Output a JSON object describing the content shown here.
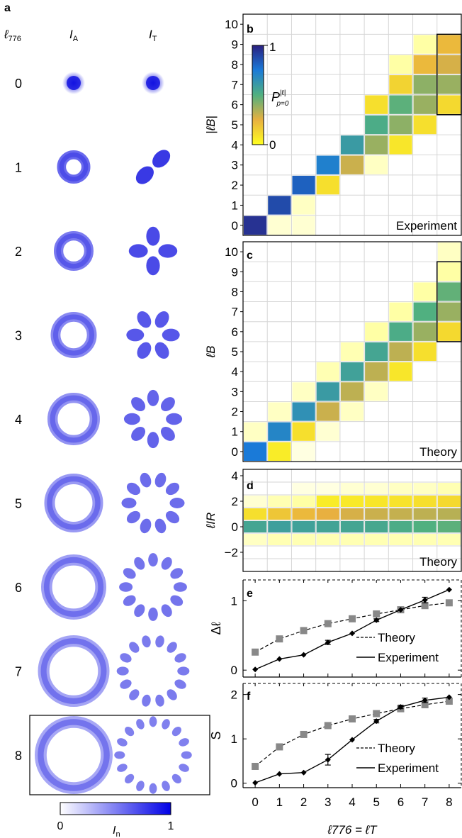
{
  "panel_letters": {
    "a": "a",
    "b": "b",
    "c": "c",
    "d": "d",
    "e": "e",
    "f": "f"
  },
  "panel_a": {
    "col_l776": "ℓ",
    "col_l776_sub": "776",
    "col_IA": "I",
    "col_IA_sub": "A",
    "col_IT": "I",
    "col_IT_sub": "T",
    "rows": [
      "0",
      "1",
      "2",
      "3",
      "4",
      "5",
      "6",
      "7",
      "8"
    ],
    "highlighted_row": "8",
    "colorbar": {
      "min_label": "0",
      "max_label": "1",
      "label": "I",
      "label_sub": "n",
      "colors": [
        "#ffffff",
        "#0000e6"
      ]
    }
  },
  "chart_data": [
    {
      "id": "b",
      "type": "heatmap",
      "ylabel": "|ℓB|",
      "corner_label": "Experiment",
      "x": [
        0,
        1,
        2,
        3,
        4,
        5,
        6,
        7,
        8
      ],
      "y_ticks": [
        "0",
        "1",
        "2",
        "3",
        "4",
        "5",
        "6",
        "7",
        "8",
        "9",
        "10"
      ],
      "ylim": [
        0,
        10
      ],
      "cells": [
        [
          0,
          0,
          0.95
        ],
        [
          1,
          0,
          0.02
        ],
        [
          2,
          0,
          0.02
        ],
        [
          1,
          1,
          0.88
        ],
        [
          2,
          1,
          0.03
        ],
        [
          2,
          2,
          0.82
        ],
        [
          3,
          2,
          0.1
        ],
        [
          3,
          3,
          0.72
        ],
        [
          4,
          3,
          0.3
        ],
        [
          5,
          3,
          0.03
        ],
        [
          4,
          4,
          0.6
        ],
        [
          5,
          4,
          0.38
        ],
        [
          6,
          4,
          0.08
        ],
        [
          5,
          5,
          0.52
        ],
        [
          6,
          5,
          0.4
        ],
        [
          7,
          5,
          0.1
        ],
        [
          5,
          6,
          0.1
        ],
        [
          6,
          6,
          0.48
        ],
        [
          7,
          6,
          0.38
        ],
        [
          8,
          6,
          0.12
        ],
        [
          6,
          7,
          0.14
        ],
        [
          7,
          7,
          0.4
        ],
        [
          8,
          7,
          0.38
        ],
        [
          6,
          8,
          0.05
        ],
        [
          7,
          8,
          0.22
        ],
        [
          8,
          8,
          0.28
        ],
        [
          7,
          9,
          0.05
        ],
        [
          8,
          9,
          0.22
        ]
      ],
      "highlight_box": {
        "x": 8,
        "y_from": 6,
        "y_to": 9
      },
      "colorbar": {
        "label": "P",
        "label_sup": "|ℓ|",
        "label_sub": "p=0",
        "min_label": "0",
        "max_label": "1"
      }
    },
    {
      "id": "c",
      "type": "heatmap",
      "ylabel": "ℓB",
      "corner_label": "Theory",
      "x": [
        0,
        1,
        2,
        3,
        4,
        5,
        6,
        7,
        8
      ],
      "y_ticks": [
        "0",
        "1",
        "2",
        "3",
        "4",
        "5",
        "6",
        "7",
        "8",
        "9",
        "10"
      ],
      "ylim": [
        0,
        10
      ],
      "cells": [
        [
          0,
          0,
          0.75
        ],
        [
          1,
          0,
          0.06
        ],
        [
          2,
          0,
          0.01
        ],
        [
          0,
          1,
          0.03
        ],
        [
          1,
          1,
          0.7
        ],
        [
          2,
          1,
          0.1
        ],
        [
          3,
          1,
          0.02
        ],
        [
          1,
          2,
          0.03
        ],
        [
          2,
          2,
          0.65
        ],
        [
          3,
          2,
          0.3
        ],
        [
          4,
          2,
          0.03
        ],
        [
          2,
          3,
          0.03
        ],
        [
          3,
          3,
          0.6
        ],
        [
          4,
          3,
          0.32
        ],
        [
          5,
          3,
          0.03
        ],
        [
          3,
          4,
          0.04
        ],
        [
          4,
          4,
          0.57
        ],
        [
          5,
          4,
          0.32
        ],
        [
          6,
          4,
          0.08
        ],
        [
          4,
          5,
          0.04
        ],
        [
          5,
          5,
          0.55
        ],
        [
          6,
          5,
          0.32
        ],
        [
          7,
          5,
          0.1
        ],
        [
          5,
          6,
          0.05
        ],
        [
          6,
          6,
          0.52
        ],
        [
          7,
          6,
          0.38
        ],
        [
          8,
          6,
          0.12
        ],
        [
          6,
          7,
          0.05
        ],
        [
          7,
          7,
          0.5
        ],
        [
          8,
          7,
          0.38
        ],
        [
          7,
          8,
          0.05
        ],
        [
          8,
          8,
          0.47
        ],
        [
          8,
          9,
          0.05
        ],
        [
          8,
          10,
          0.03
        ]
      ],
      "highlight_box": {
        "x": 8,
        "y_from": 6,
        "y_to": 9
      }
    },
    {
      "id": "d",
      "type": "heatmap",
      "ylabel": "ℓIR",
      "corner_label": "Theory",
      "x": [
        0,
        1,
        2,
        3,
        4,
        5,
        6,
        7,
        8
      ],
      "y_ticks": [
        "-2",
        "0",
        "2",
        "4"
      ],
      "ylim": [
        -3,
        4
      ],
      "cells": [
        [
          0,
          0,
          0.55
        ],
        [
          1,
          0,
          0.58
        ],
        [
          2,
          0,
          0.57
        ],
        [
          3,
          0,
          0.56
        ],
        [
          4,
          0,
          0.55
        ],
        [
          5,
          0,
          0.54
        ],
        [
          6,
          0,
          0.52
        ],
        [
          7,
          0,
          0.5
        ],
        [
          8,
          0,
          0.48
        ],
        [
          0,
          1,
          0.1
        ],
        [
          1,
          1,
          0.18
        ],
        [
          2,
          1,
          0.22
        ],
        [
          3,
          1,
          0.25
        ],
        [
          4,
          1,
          0.28
        ],
        [
          5,
          1,
          0.3
        ],
        [
          6,
          1,
          0.31
        ],
        [
          7,
          1,
          0.32
        ],
        [
          8,
          1,
          0.33
        ],
        [
          0,
          2,
          0.02
        ],
        [
          1,
          2,
          0.04
        ],
        [
          2,
          2,
          0.05
        ],
        [
          3,
          2,
          0.06
        ],
        [
          4,
          2,
          0.07
        ],
        [
          5,
          2,
          0.08
        ],
        [
          6,
          2,
          0.09
        ],
        [
          7,
          2,
          0.1
        ],
        [
          8,
          2,
          0.12
        ],
        [
          2,
          3,
          0.01
        ],
        [
          3,
          3,
          0.01
        ],
        [
          4,
          3,
          0.02
        ],
        [
          5,
          3,
          0.02
        ],
        [
          6,
          3,
          0.03
        ],
        [
          7,
          3,
          0.03
        ],
        [
          8,
          3,
          0.04
        ],
        [
          0,
          -1,
          0.03
        ],
        [
          1,
          -1,
          0.04
        ],
        [
          2,
          -1,
          0.04
        ],
        [
          3,
          -1,
          0.04
        ],
        [
          4,
          -1,
          0.04
        ],
        [
          5,
          -1,
          0.04
        ],
        [
          6,
          -1,
          0.04
        ],
        [
          7,
          -1,
          0.04
        ],
        [
          8,
          -1,
          0.04
        ]
      ]
    },
    {
      "id": "e",
      "type": "line",
      "ylabel": "Δℓ",
      "x": [
        0,
        1,
        2,
        3,
        4,
        5,
        6,
        7,
        8
      ],
      "ylim": [
        -0.1,
        1.3
      ],
      "yticks": [
        0,
        1
      ],
      "series": [
        {
          "name": "Theory",
          "values": [
            0.26,
            0.45,
            0.57,
            0.67,
            0.74,
            0.81,
            0.87,
            0.93,
            0.97
          ]
        },
        {
          "name": "Experiment",
          "values": [
            0.01,
            0.16,
            0.22,
            0.4,
            0.53,
            0.72,
            0.87,
            1.01,
            1.16
          ],
          "errors": [
            0,
            0,
            0,
            0.03,
            0,
            0.02,
            0,
            0.04,
            0
          ]
        }
      ]
    },
    {
      "id": "f",
      "type": "line",
      "ylabel": "S",
      "xlabel": "ℓ776 = ℓT",
      "x": [
        0,
        1,
        2,
        3,
        4,
        5,
        6,
        7,
        8
      ],
      "xticks": [
        "0",
        "1",
        "2",
        "3",
        "4",
        "5",
        "6",
        "7",
        "8"
      ],
      "ylim": [
        -0.1,
        2.25
      ],
      "yticks": [
        0,
        1,
        2
      ],
      "series": [
        {
          "name": "Theory",
          "values": [
            0.38,
            0.82,
            1.1,
            1.3,
            1.45,
            1.57,
            1.68,
            1.77,
            1.85
          ]
        },
        {
          "name": "Experiment",
          "values": [
            0.01,
            0.21,
            0.24,
            0.53,
            0.98,
            1.4,
            1.72,
            1.87,
            1.94
          ],
          "errors": [
            0,
            0,
            0,
            0.12,
            0,
            0.04,
            0.04,
            0.05,
            0
          ]
        }
      ]
    }
  ]
}
